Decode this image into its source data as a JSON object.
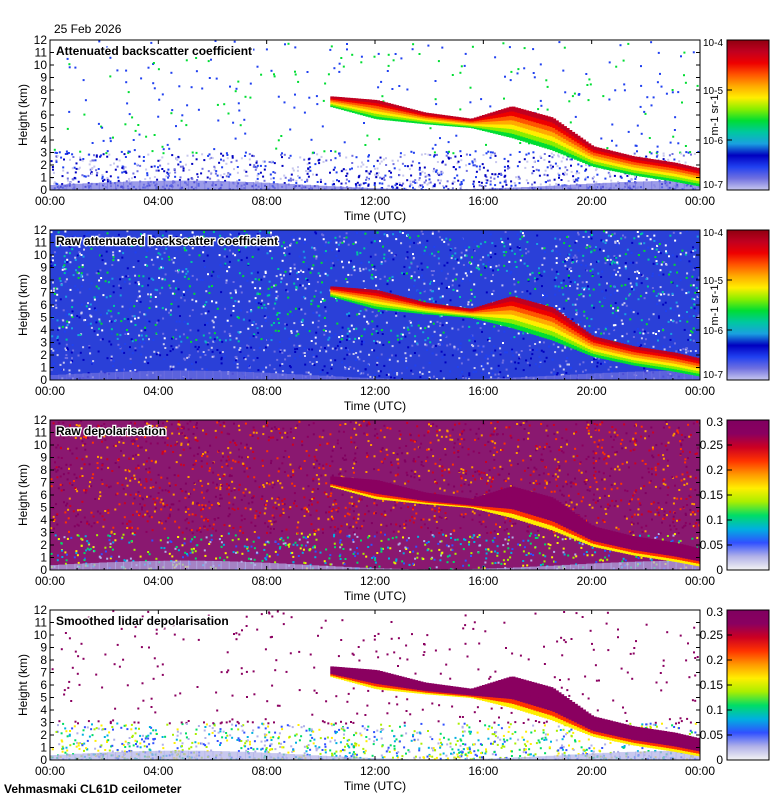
{
  "date_label": "25 Feb 2026",
  "footer": "Vehmasmaki CL61D ceilometer",
  "palette": {
    "backscatter": [
      "#ffffff",
      "#c8c8ee",
      "#7070e0",
      "#2040f0",
      "#0000c0",
      "#1aa0e0",
      "#00c8a0",
      "#00dd33",
      "#88ee00",
      "#ffee00",
      "#ffaa00",
      "#ff5500",
      "#ee0000",
      "#c00020",
      "#900010"
    ],
    "depol": [
      "#f4f4f4",
      "#b0b0e8",
      "#3050ff",
      "#00b0e0",
      "#00dd66",
      "#aaee00",
      "#ffee00",
      "#ff9900",
      "#ff3300",
      "#cc0022",
      "#8a0060",
      "#800060"
    ]
  },
  "chart_data": [
    {
      "type": "heatmap",
      "title": "Attenuated backscatter coefficient",
      "xlabel": "Time (UTC)",
      "ylabel": "Height (km)",
      "xticks": [
        "00:00",
        "04:00",
        "08:00",
        "12:00",
        "16:00",
        "20:00",
        "00:00"
      ],
      "xlim": [
        0,
        24
      ],
      "ylim": [
        0,
        12
      ],
      "yticks": [
        "0",
        "1",
        "2",
        "3",
        "4",
        "5",
        "6",
        "7",
        "8",
        "9",
        "10",
        "11",
        "12"
      ],
      "colorbar": {
        "scale": "log",
        "range": [
          1e-07,
          0.0001
        ],
        "labels": [
          "10-7",
          "10-6",
          "10-5",
          "10-4"
        ],
        "unit": "m-1 sr-1"
      },
      "noise": "filtered",
      "cloud_layer": [
        {
          "t": 10.3,
          "top": 7.5,
          "base": 6.7
        },
        {
          "t": 12.0,
          "top": 7.2,
          "base": 5.7
        },
        {
          "t": 13.8,
          "top": 6.2,
          "base": 5.3
        },
        {
          "t": 15.5,
          "top": 5.7,
          "base": 5.0
        },
        {
          "t": 17.0,
          "top": 6.7,
          "base": 4.2
        },
        {
          "t": 18.5,
          "top": 5.8,
          "base": 3.2
        },
        {
          "t": 20.0,
          "top": 3.5,
          "base": 1.9
        },
        {
          "t": 21.5,
          "top": 2.7,
          "base": 1.2
        },
        {
          "t": 23.0,
          "top": 2.2,
          "base": 0.7
        },
        {
          "t": 24.0,
          "top": 1.7,
          "base": 0.3
        }
      ]
    },
    {
      "type": "heatmap",
      "title": "Raw attenuated backscatter coefficient",
      "xlabel": "Time (UTC)",
      "ylabel": "Height (km)",
      "xticks": [
        "00:00",
        "04:00",
        "08:00",
        "12:00",
        "16:00",
        "20:00",
        "00:00"
      ],
      "xlim": [
        0,
        24
      ],
      "ylim": [
        0,
        12
      ],
      "yticks": [
        "0",
        "1",
        "2",
        "3",
        "4",
        "5",
        "6",
        "7",
        "8",
        "9",
        "10",
        "11",
        "12"
      ],
      "colorbar": {
        "scale": "log",
        "range": [
          1e-07,
          0.0001
        ],
        "labels": [
          "10-7",
          "10-6",
          "10-5",
          "10-4"
        ],
        "unit": "m-1 sr-1"
      },
      "noise": "raw",
      "cloud_layer": [
        {
          "t": 10.3,
          "top": 7.5,
          "base": 6.7
        },
        {
          "t": 12.0,
          "top": 7.2,
          "base": 5.7
        },
        {
          "t": 13.8,
          "top": 6.2,
          "base": 5.3
        },
        {
          "t": 15.5,
          "top": 5.7,
          "base": 5.0
        },
        {
          "t": 17.0,
          "top": 6.7,
          "base": 4.2
        },
        {
          "t": 18.5,
          "top": 5.8,
          "base": 3.2
        },
        {
          "t": 20.0,
          "top": 3.5,
          "base": 1.9
        },
        {
          "t": 21.5,
          "top": 2.7,
          "base": 1.2
        },
        {
          "t": 23.0,
          "top": 2.2,
          "base": 0.7
        },
        {
          "t": 24.0,
          "top": 1.7,
          "base": 0.3
        }
      ]
    },
    {
      "type": "heatmap",
      "title": "Raw depolarisation",
      "xlabel": "Time (UTC)",
      "ylabel": "Height (km)",
      "xticks": [
        "00:00",
        "04:00",
        "08:00",
        "12:00",
        "16:00",
        "20:00",
        "00:00"
      ],
      "xlim": [
        0,
        24
      ],
      "ylim": [
        0,
        12
      ],
      "yticks": [
        "0",
        "1",
        "2",
        "3",
        "4",
        "5",
        "6",
        "7",
        "8",
        "9",
        "10",
        "11",
        "12"
      ],
      "colorbar": {
        "scale": "linear",
        "range": [
          0,
          0.3
        ],
        "labels": [
          "0",
          "0.05",
          "0.1",
          "0.15",
          "0.2",
          "0.25",
          "0.3"
        ],
        "unit": ""
      },
      "noise": "raw",
      "cloud_layer": [
        {
          "t": 10.3,
          "top": 7.5,
          "base": 6.7
        },
        {
          "t": 12.0,
          "top": 7.2,
          "base": 5.7
        },
        {
          "t": 13.8,
          "top": 6.2,
          "base": 5.3
        },
        {
          "t": 15.5,
          "top": 5.7,
          "base": 5.0
        },
        {
          "t": 17.0,
          "top": 6.7,
          "base": 4.2
        },
        {
          "t": 18.5,
          "top": 5.8,
          "base": 3.2
        },
        {
          "t": 20.0,
          "top": 3.5,
          "base": 1.9
        },
        {
          "t": 21.5,
          "top": 2.7,
          "base": 1.2
        },
        {
          "t": 23.0,
          "top": 2.2,
          "base": 0.7
        },
        {
          "t": 24.0,
          "top": 1.7,
          "base": 0.3
        }
      ]
    },
    {
      "type": "heatmap",
      "title": "Smoothed lidar depolarisation",
      "xlabel": "Time (UTC)",
      "ylabel": "Height (km)",
      "xticks": [
        "00:00",
        "04:00",
        "08:00",
        "12:00",
        "16:00",
        "20:00",
        "00:00"
      ],
      "xlim": [
        0,
        24
      ],
      "ylim": [
        0,
        12
      ],
      "yticks": [
        "0",
        "1",
        "2",
        "3",
        "4",
        "5",
        "6",
        "7",
        "8",
        "9",
        "10",
        "11",
        "12"
      ],
      "colorbar": {
        "scale": "linear",
        "range": [
          0,
          0.3
        ],
        "labels": [
          "0",
          "0.05",
          "0.1",
          "0.15",
          "0.2",
          "0.25",
          "0.3"
        ],
        "unit": ""
      },
      "noise": "filtered",
      "cloud_layer": [
        {
          "t": 10.3,
          "top": 7.5,
          "base": 6.7
        },
        {
          "t": 12.0,
          "top": 7.2,
          "base": 5.7
        },
        {
          "t": 13.8,
          "top": 6.2,
          "base": 5.3
        },
        {
          "t": 15.5,
          "top": 5.7,
          "base": 5.0
        },
        {
          "t": 17.0,
          "top": 6.7,
          "base": 4.2
        },
        {
          "t": 18.5,
          "top": 5.8,
          "base": 3.2
        },
        {
          "t": 20.0,
          "top": 3.5,
          "base": 1.9
        },
        {
          "t": 21.5,
          "top": 2.7,
          "base": 1.2
        },
        {
          "t": 23.0,
          "top": 2.2,
          "base": 0.7
        },
        {
          "t": 24.0,
          "top": 1.7,
          "base": 0.3
        }
      ]
    }
  ]
}
